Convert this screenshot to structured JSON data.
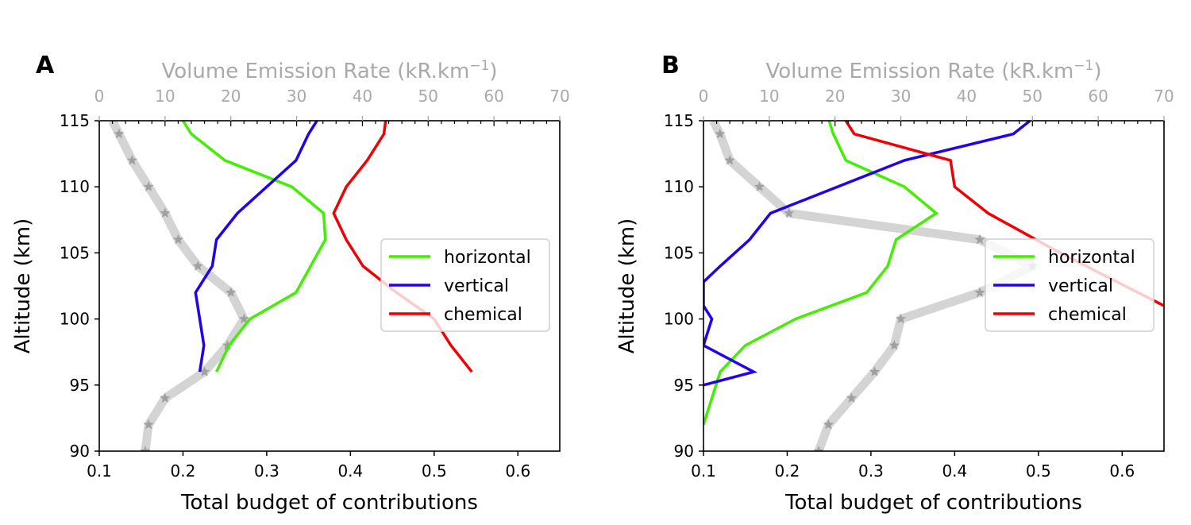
{
  "chart_data": [
    {
      "type": "line",
      "panel_label": "A",
      "xlabel": "Total budget of contributions",
      "ylabel": "Altitude (km)",
      "top_xlabel": "Volume Emission Rate (kR.km",
      "top_xlabel_sup": "−1",
      "top_xlabel_close": ")",
      "xlim": [
        0.1,
        0.65
      ],
      "ylim": [
        90,
        115
      ],
      "xticks": [
        0.1,
        0.2,
        0.3,
        0.4,
        0.5,
        0.6
      ],
      "yticks": [
        90,
        95,
        100,
        105,
        110,
        115
      ],
      "top_xlim": [
        0,
        70
      ],
      "top_xticks": [
        0,
        10,
        20,
        30,
        40,
        50,
        60,
        70
      ],
      "legend_position": "center-right",
      "series": [
        {
          "name": "horizontal",
          "color": "#44ee00",
          "points": [
            [
              0.24,
              96
            ],
            [
              0.255,
              98
            ],
            [
              0.28,
              100
            ],
            [
              0.335,
              102
            ],
            [
              0.37,
              106
            ],
            [
              0.368,
              108
            ],
            [
              0.33,
              110
            ],
            [
              0.25,
              112
            ],
            [
              0.21,
              114
            ],
            [
              0.2,
              115
            ]
          ]
        },
        {
          "name": "vertical",
          "color": "#2200ee",
          "points": [
            [
              0.22,
              96
            ],
            [
              0.225,
              98
            ],
            [
              0.22,
              100
            ],
            [
              0.215,
              102
            ],
            [
              0.235,
              104
            ],
            [
              0.24,
              106
            ],
            [
              0.265,
              108
            ],
            [
              0.3,
              110
            ],
            [
              0.335,
              112
            ],
            [
              0.35,
              114
            ],
            [
              0.36,
              115
            ]
          ]
        },
        {
          "name": "chemical",
          "color": "#ee0000",
          "points": [
            [
              0.545,
              96
            ],
            [
              0.52,
              98
            ],
            [
              0.5,
              100
            ],
            [
              0.455,
              102
            ],
            [
              0.415,
              104
            ],
            [
              0.395,
              106
            ],
            [
              0.38,
              108
            ],
            [
              0.395,
              110
            ],
            [
              0.42,
              112
            ],
            [
              0.44,
              114
            ],
            [
              0.442,
              115
            ]
          ]
        }
      ],
      "ver_profile": {
        "color": "#cccccc",
        "points": [
          [
            7,
            90
          ],
          [
            7.5,
            92
          ],
          [
            10,
            94
          ],
          [
            16,
            96
          ],
          [
            19.5,
            98
          ],
          [
            22,
            100
          ],
          [
            20,
            102
          ],
          [
            15,
            104
          ],
          [
            12,
            106
          ],
          [
            10,
            108
          ],
          [
            7.5,
            110
          ],
          [
            5,
            112
          ],
          [
            3,
            114
          ],
          [
            2,
            115
          ]
        ]
      }
    },
    {
      "type": "line",
      "panel_label": "B",
      "xlabel": "Total budget of contributions",
      "ylabel": "Altitude (km)",
      "top_xlabel": "Volume Emission Rate (kR.km",
      "top_xlabel_sup": "−1",
      "top_xlabel_close": ")",
      "xlim": [
        0.1,
        0.65
      ],
      "ylim": [
        90,
        115
      ],
      "xticks": [
        0.1,
        0.2,
        0.3,
        0.4,
        0.5,
        0.6
      ],
      "yticks": [
        90,
        95,
        100,
        105,
        110,
        115
      ],
      "top_xlim": [
        0,
        70
      ],
      "top_xticks": [
        0,
        10,
        20,
        30,
        40,
        50,
        60,
        70
      ],
      "legend_position": "center-right",
      "series": [
        {
          "name": "horizontal",
          "color": "#44ee00",
          "points": [
            [
              0.1,
              92
            ],
            [
              0.12,
              96
            ],
            [
              0.15,
              98
            ],
            [
              0.21,
              100
            ],
            [
              0.295,
              102
            ],
            [
              0.32,
              104
            ],
            [
              0.33,
              106
            ],
            [
              0.378,
              108
            ],
            [
              0.34,
              110
            ],
            [
              0.27,
              112
            ],
            [
              0.255,
              114
            ],
            [
              0.25,
              115
            ]
          ]
        },
        {
          "name": "vertical",
          "color": "#2200ee",
          "points": [
            [
              0.1,
              95
            ],
            [
              0.16,
              96
            ],
            [
              0.1,
              98
            ],
            [
              0.11,
              100
            ],
            [
              0.1,
              101
            ],
            [
              0.1,
              102.8
            ],
            [
              0.12,
              104
            ],
            [
              0.155,
              106
            ],
            [
              0.18,
              108
            ],
            [
              0.26,
              110
            ],
            [
              0.34,
              112
            ],
            [
              0.47,
              114
            ],
            [
              0.49,
              115
            ]
          ]
        },
        {
          "name": "chemical",
          "color": "#ee0000",
          "points": [
            [
              0.65,
              101
            ],
            [
              0.52,
              105.2
            ],
            [
              0.44,
              108
            ],
            [
              0.4,
              110
            ],
            [
              0.395,
              112
            ],
            [
              0.28,
              114
            ],
            [
              0.27,
              115
            ]
          ]
        }
      ],
      "ver_profile": {
        "color": "#cccccc",
        "points": [
          [
            17.5,
            90
          ],
          [
            19,
            92
          ],
          [
            22.5,
            94
          ],
          [
            26,
            96
          ],
          [
            29,
            98
          ],
          [
            30,
            100
          ],
          [
            42,
            102
          ],
          [
            50,
            104
          ],
          [
            42,
            106
          ],
          [
            13,
            108
          ],
          [
            8.5,
            110
          ],
          [
            4,
            112
          ],
          [
            2.5,
            114
          ],
          [
            1.5,
            115
          ]
        ]
      }
    }
  ]
}
